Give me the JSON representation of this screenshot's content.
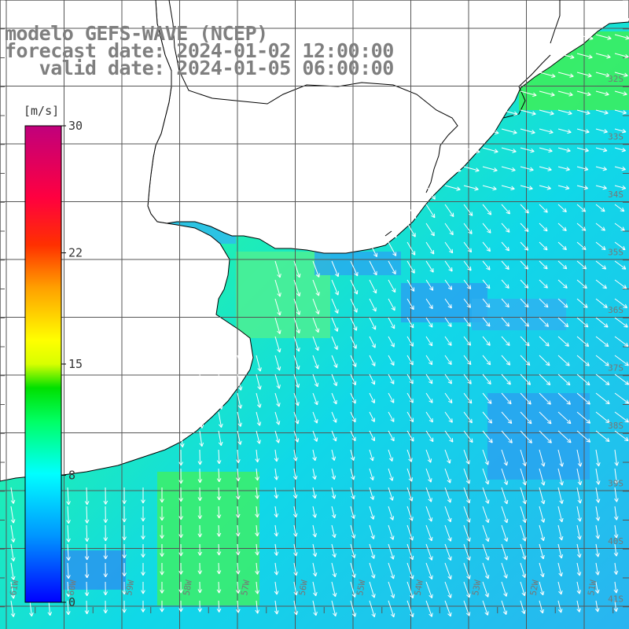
{
  "title": {
    "line1": "modelo GEFS-WAVE (NCEP)",
    "line2": "forecast date: 2024-01-02 12:00:00",
    "line3": "   valid date: 2024-01-05 06:00:00"
  },
  "colorbar": {
    "units": "[m/s]",
    "ticks": [
      {
        "label": "30",
        "value": 30
      },
      {
        "label": "22",
        "value": 22
      },
      {
        "label": "15",
        "value": 15
      },
      {
        "label": "8",
        "value": 8
      },
      {
        "label": "0",
        "value": 0
      }
    ],
    "stops": [
      "#0000ff",
      "#0096ff",
      "#00ffff",
      "#00ff64",
      "#00e000",
      "#d8ff00",
      "#ffff00",
      "#ffa000",
      "#ff3000",
      "#ff0040",
      "#c0007c"
    ]
  },
  "axes": {
    "lat_labels": [
      "32S",
      "33S",
      "34S",
      "35S",
      "36S",
      "37S",
      "38S",
      "39S",
      "40S",
      "41S"
    ],
    "lon_labels": [
      "61W",
      "60W",
      "59W",
      "58W",
      "57W",
      "56W",
      "55W",
      "54W",
      "53W",
      "52W",
      "51W"
    ]
  },
  "colors": {
    "land": "#ffffff",
    "coast": "#000000",
    "grid": "#555555",
    "arrow": "#ffffff",
    "title": "#7f7f7f"
  }
}
